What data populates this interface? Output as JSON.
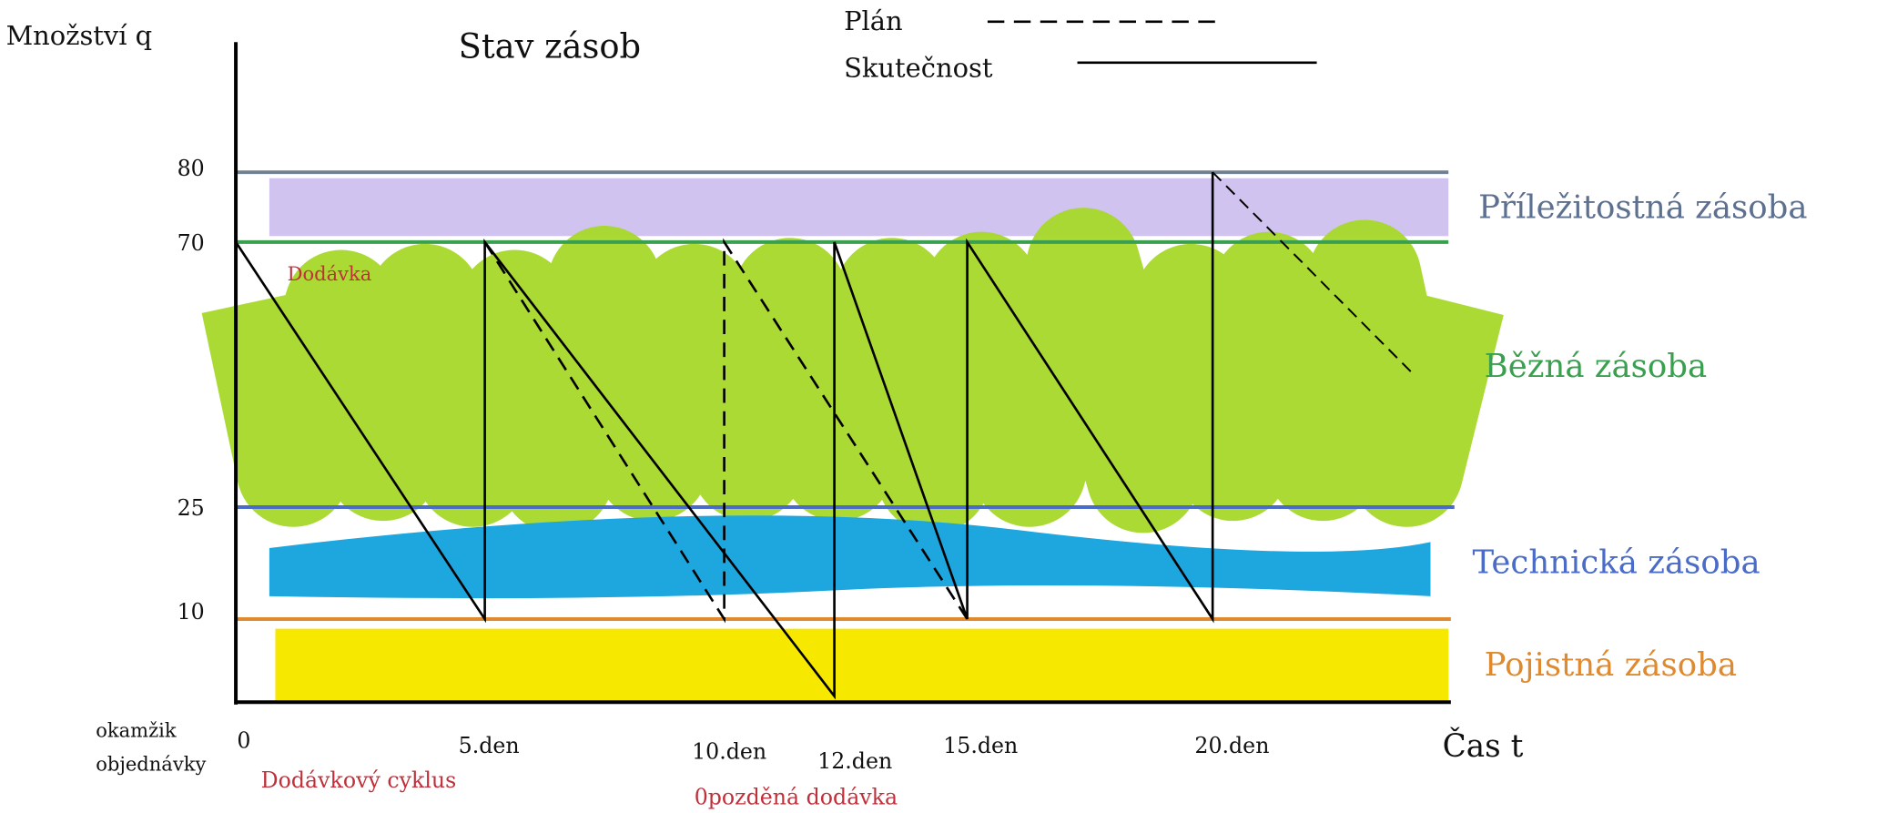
{
  "title": "Stav zásob",
  "y_axis_label": "Množství q",
  "x_axis_label": "Čas t",
  "y_labels": [
    "80",
    "70",
    "25",
    "10"
  ],
  "x_labels": [
    "0",
    "5.den",
    "10.den",
    "12.den",
    "15.den",
    "20.den"
  ],
  "legend": [
    "Plán",
    "Skutečnost"
  ],
  "zones": [
    "Příležitostná zásoba",
    "Běžná zásoba",
    "Technická zásoba",
    "Pojistná zásoba"
  ],
  "annotations": {
    "delivery": "Dodávka",
    "order_moment": [
      "okamžik",
      "objednávky"
    ],
    "cycle": "Dodávkový cyklus",
    "late": "0pozděná dodávka"
  }
}
